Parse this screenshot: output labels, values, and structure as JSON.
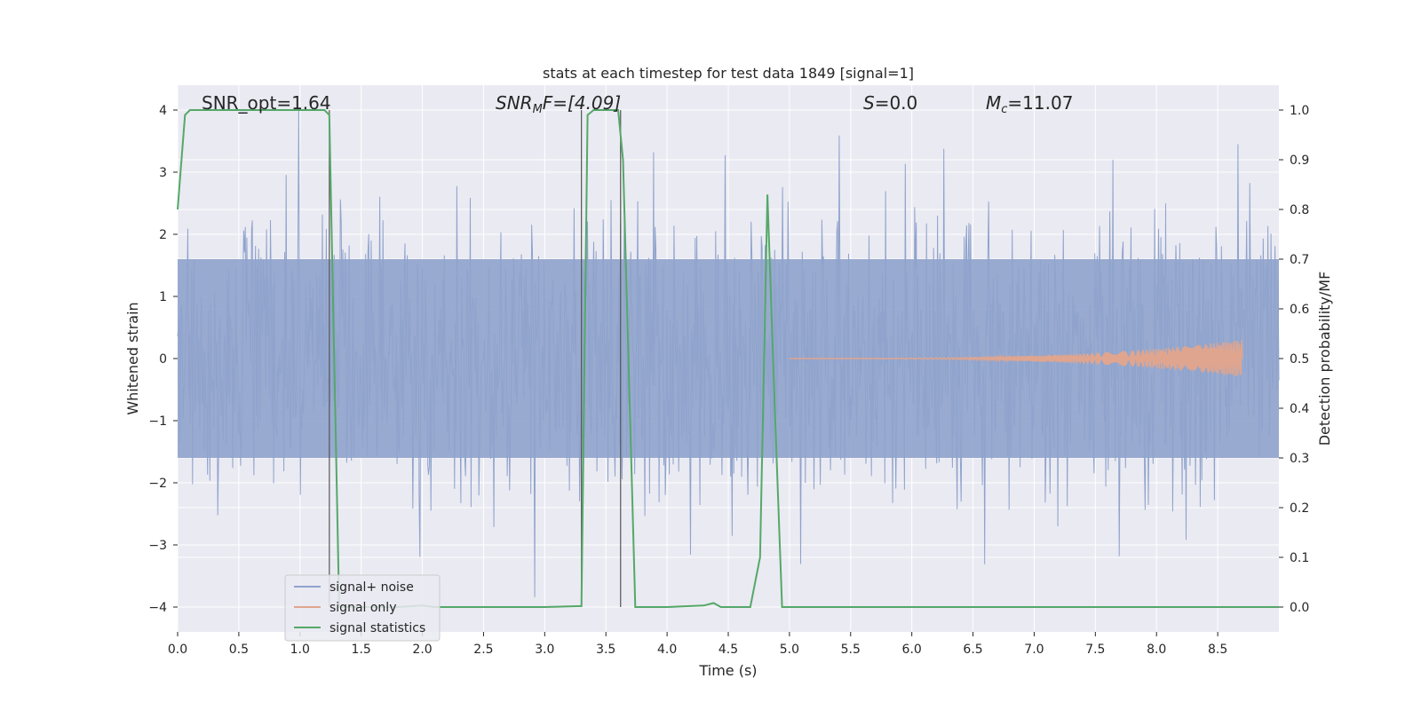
{
  "chart_data": {
    "type": "line",
    "title": "stats at each timestep for test data 1849 [signal=1]",
    "xlabel": "Time (s)",
    "ylabel": "Whitened strain",
    "y2label": "Detection probability/MF",
    "xlim": [
      0,
      9.0
    ],
    "ylim": [
      -4.4,
      4.4
    ],
    "y2lim": [
      -0.05,
      1.05
    ],
    "xticks": [
      0.0,
      0.5,
      1.0,
      1.5,
      2.0,
      2.5,
      3.0,
      3.5,
      4.0,
      4.5,
      5.0,
      5.5,
      6.0,
      6.5,
      7.0,
      7.5,
      8.0,
      8.5
    ],
    "xtick_labels": [
      "0.0",
      "0.5",
      "1.0",
      "1.5",
      "2.0",
      "2.5",
      "3.0",
      "3.5",
      "4.0",
      "4.5",
      "5.0",
      "5.5",
      "6.0",
      "6.5",
      "7.0",
      "7.5",
      "8.0",
      "8.5"
    ],
    "yticks": [
      4,
      3,
      2,
      1,
      0,
      -1,
      -2,
      -3,
      -4
    ],
    "ytick_labels": [
      "4",
      "3",
      "2",
      "1",
      "0",
      "−1",
      "−2",
      "−3",
      "−4"
    ],
    "y2ticks": [
      1.0,
      0.9,
      0.8,
      0.7,
      0.6,
      0.5,
      0.4,
      0.3,
      0.2,
      0.1,
      0.0
    ],
    "y2tick_labels": [
      "1.0",
      "0.9",
      "0.8",
      "0.7",
      "0.6",
      "0.5",
      "0.4",
      "0.3",
      "0.2",
      "0.1",
      "0.0"
    ],
    "grid": true,
    "legend_position": "lower-left",
    "annotations": {
      "snr_opt": "SNR_opt=1.64",
      "snr_mf_base": "SNR",
      "snr_mf_sub": "M",
      "snr_mf_rest": "F=[4.09]",
      "s_value": "=0.0",
      "s_var": "S",
      "mc_base": "M",
      "mc_sub": "c",
      "mc_rest": "=11.07"
    },
    "series": [
      {
        "name": "signal+ noise",
        "color": "#8fa3cc",
        "description_of_shape": "dense noise band",
        "envelope": {
          "low_core": -1.6,
          "high_core": 1.6
        }
      },
      {
        "name": "signal only",
        "color": "#e0a58e",
        "chirp": {
          "start_t": 5.0,
          "end_t": 8.7,
          "peak_amp": 0.3
        }
      },
      {
        "name": "signal statistics",
        "color": "#55a868",
        "x": [
          0.0,
          0.06,
          0.1,
          0.2,
          1.0,
          1.2,
          1.24,
          1.32,
          1.4,
          1.6,
          1.8,
          2.0,
          2.1,
          2.4,
          3.0,
          3.3,
          3.35,
          3.4,
          3.48,
          3.6,
          3.64,
          3.74,
          3.8,
          4.0,
          4.3,
          4.38,
          4.44,
          4.5,
          4.68,
          4.76,
          4.82,
          4.88,
          4.94,
          5.0,
          5.5,
          6.0,
          7.0,
          8.0,
          9.0
        ],
        "y": [
          0.8,
          0.99,
          1.0,
          1.0,
          1.0,
          1.0,
          0.99,
          0.0,
          0.0,
          0.0,
          0.0,
          0.003,
          0.0,
          0.0,
          0.0,
          0.002,
          0.99,
          1.0,
          1.0,
          1.0,
          0.9,
          0.0,
          0.0,
          0.0,
          0.003,
          0.008,
          0.0,
          0.0,
          0.0,
          0.1,
          0.83,
          0.4,
          0.0,
          0.0,
          0.0,
          0.0,
          0.0,
          0.0,
          0.0
        ]
      }
    ],
    "vlines": [
      1.24,
      3.3,
      3.62
    ],
    "legend": [
      "signal+ noise",
      "signal only",
      "signal statistics"
    ]
  }
}
